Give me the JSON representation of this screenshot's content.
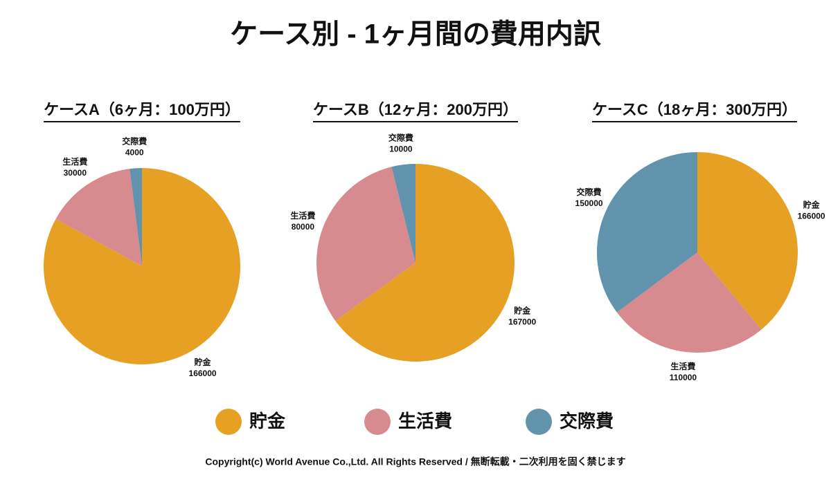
{
  "title": "ケース別 - 1ヶ月間の費用内訳",
  "copyright": "Copyright(c) World Avenue Co.,Ltd. All Rights Reserved / 無断転載・二次利用を固く禁じます",
  "chart_data": [
    {
      "type": "pie",
      "title": "ケースA（6ヶ月：100万円）",
      "categories": [
        "貯金",
        "生活費",
        "交際費"
      ],
      "values": [
        166000,
        30000,
        4000
      ],
      "colors": [
        "#e6a023",
        "#d78b8f",
        "#6193ad"
      ]
    },
    {
      "type": "pie",
      "title": "ケースB（12ヶ月：200万円）",
      "categories": [
        "貯金",
        "生活費",
        "交際費"
      ],
      "values": [
        167000,
        80000,
        10000
      ],
      "colors": [
        "#e6a023",
        "#d78b8f",
        "#6193ad"
      ]
    },
    {
      "type": "pie",
      "title": "ケースC（18ヶ月：300万円）",
      "categories": [
        "貯金",
        "生活費",
        "交際費"
      ],
      "values": [
        166000,
        110000,
        150000
      ],
      "colors": [
        "#e6a023",
        "#d78b8f",
        "#6193ad"
      ]
    }
  ]
}
